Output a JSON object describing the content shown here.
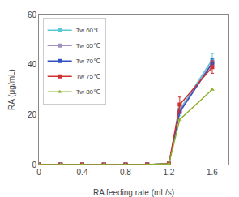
{
  "chart_data": {
    "type": "line",
    "xlabel": "RA feeding rate (mL/s)",
    "ylabel": "RA (μg/mL)",
    "xlim": [
      0,
      1.75
    ],
    "ylim": [
      0,
      60
    ],
    "xticks": [
      0,
      0.4,
      0.8,
      1.2,
      1.6
    ],
    "yticks": [
      0,
      20,
      40,
      60
    ],
    "grid": false,
    "legend": "upper left",
    "x": [
      0,
      0.2,
      0.4,
      0.6,
      0.8,
      1.0,
      1.2,
      1.3,
      1.6
    ],
    "series": [
      {
        "name": "Tw 60℃",
        "color": "#5bc8d5",
        "marker": "square",
        "values": [
          0,
          0,
          0,
          0,
          0,
          0,
          0.3,
          22.0,
          42.0
        ],
        "yerr": [
          0,
          0,
          0,
          0,
          0,
          0,
          0.0,
          2.5,
          2.5
        ]
      },
      {
        "name": "Tw 65℃",
        "color": "#a090c0",
        "marker": "square",
        "values": [
          0,
          0,
          0,
          0,
          0,
          0,
          0.3,
          21.5,
          41.0
        ],
        "yerr": [
          0,
          0,
          0,
          0,
          0,
          0,
          0.0,
          0.0,
          0.0
        ]
      },
      {
        "name": "Tw 70℃",
        "color": "#3050c0",
        "marker": "square",
        "values": [
          0,
          0,
          0,
          0,
          0,
          0,
          0.3,
          21.0,
          40.5
        ],
        "yerr": [
          0,
          0,
          0,
          0,
          0,
          0,
          0.0,
          0.0,
          2.0
        ]
      },
      {
        "name": "Tw 75℃",
        "color": "#d03030",
        "marker": "square",
        "values": [
          0,
          0,
          0,
          0,
          0,
          0,
          0.3,
          24.0,
          39.0
        ],
        "yerr": [
          0,
          0,
          0,
          0,
          0,
          0,
          0.0,
          3.0,
          2.5
        ]
      },
      {
        "name": "Tw 80℃",
        "color": "#90b030",
        "marker": "triangle",
        "values": [
          0,
          0,
          0,
          0,
          0,
          0,
          0.3,
          18.0,
          30.0
        ],
        "yerr": [
          0,
          0,
          0,
          0,
          0,
          0,
          0.0,
          0.0,
          0.0
        ]
      }
    ]
  }
}
